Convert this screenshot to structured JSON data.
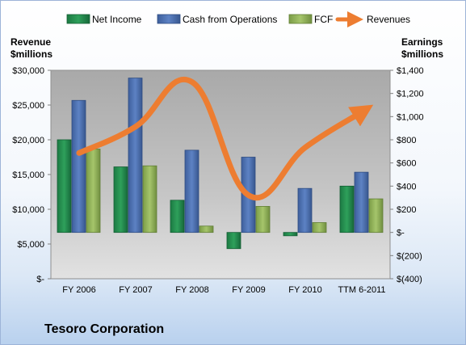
{
  "company_name": "Tesoro Corporation",
  "chart_data": {
    "type": "bar",
    "categories": [
      "FY 2006",
      "FY 2007",
      "FY 2008",
      "FY 2009",
      "FY 2010",
      "TTM 6-2011"
    ],
    "series": [
      {
        "name": "Net Income",
        "axis": "right",
        "chart": "bar",
        "color": "#1f8a4c",
        "values": [
          800,
          566,
          278,
          -140,
          -29,
          400
        ]
      },
      {
        "name": "Cash from Operations",
        "axis": "right",
        "chart": "bar",
        "color": "#4a6fb0",
        "values": [
          1140,
          1333,
          710,
          650,
          380,
          520
        ]
      },
      {
        "name": "FCF",
        "axis": "right",
        "chart": "bar",
        "color": "#8fb15a",
        "values": [
          720,
          575,
          55,
          225,
          85,
          290
        ]
      },
      {
        "name": "Revenues",
        "axis": "left",
        "chart": "line",
        "color": "#ed7d31",
        "values": [
          18100,
          21900,
          28300,
          12000,
          18900,
          24000
        ]
      }
    ],
    "left_axis": {
      "label_line1": "Revenue",
      "label_line2": "$millions",
      "min": 0,
      "max": 30000,
      "ticks": [
        0,
        5000,
        10000,
        15000,
        20000,
        25000,
        30000
      ],
      "tick_labels": [
        "$-",
        "$5,000",
        "$10,000",
        "$15,000",
        "$20,000",
        "$25,000",
        "$30,000"
      ]
    },
    "right_axis": {
      "label_line1": "Earnings",
      "label_line2": "$millions",
      "min": -400,
      "max": 1400,
      "ticks": [
        -400,
        -200,
        0,
        200,
        400,
        600,
        800,
        1000,
        1200,
        1400
      ],
      "tick_labels": [
        "$(400)",
        "$(200)",
        "$-",
        "$200",
        "$400",
        "$600",
        "$800",
        "$1,000",
        "$1,200",
        "$1,400"
      ]
    },
    "legend_position": "top",
    "grid": false,
    "plot_background": "#bfbfbf"
  }
}
